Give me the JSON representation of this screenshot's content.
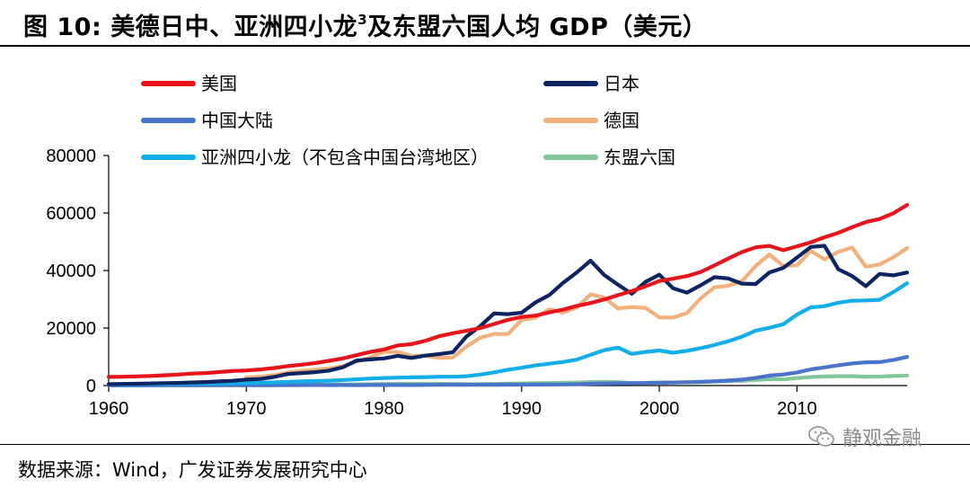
{
  "figure": {
    "label": "图 10:",
    "title_main": "美德日中、亚洲四小龙",
    "title_sup": "3",
    "title_rest": "及东盟六国人均 GDP（美元）"
  },
  "source": "数据来源：Wind，广发证券发展研究中心",
  "watermark": {
    "text": "静观金融",
    "icon": "wechat-icon"
  },
  "chart_data": {
    "type": "line",
    "xlim": [
      1960,
      2018
    ],
    "ylim": [
      0,
      80000
    ],
    "x_ticks": [
      1960,
      1970,
      1980,
      1990,
      2000,
      2010
    ],
    "y_ticks": [
      0,
      20000,
      40000,
      60000,
      80000
    ],
    "x_tick_labels": [
      "1960",
      "1970",
      "1980",
      "1990",
      "2000",
      "2010"
    ],
    "y_tick_labels": [
      "0",
      "20000",
      "40000",
      "60000",
      "80000"
    ],
    "legend_position": "top",
    "series": [
      {
        "name": "美国",
        "color": "#e8141b",
        "start": 1960,
        "values": [
          3000,
          3050,
          3200,
          3350,
          3550,
          3800,
          4150,
          4350,
          4700,
          5050,
          5250,
          5600,
          6100,
          6750,
          7250,
          7800,
          8600,
          9450,
          10550,
          11700,
          12550,
          13950,
          14400,
          15550,
          17150,
          18200,
          19050,
          20000,
          21400,
          22850,
          23850,
          24300,
          25450,
          26400,
          27700,
          28700,
          29950,
          31450,
          32850,
          34500,
          36350,
          37150,
          38050,
          39500,
          41750,
          44150,
          46400,
          48050,
          48550,
          47050,
          48400,
          49800,
          51550,
          53100,
          55050,
          56850,
          57900,
          59900,
          62800
        ]
      },
      {
        "name": "日本",
        "color": "#0c2461",
        "start": 1960,
        "values": [
          480,
          560,
          640,
          720,
          830,
          920,
          1060,
          1230,
          1450,
          1670,
          2050,
          2270,
          2970,
          3990,
          4350,
          4670,
          5200,
          6350,
          8700,
          9100,
          9450,
          10350,
          9600,
          10400,
          10950,
          11600,
          17100,
          20700,
          25100,
          24800,
          25350,
          28900,
          31450,
          35700,
          39300,
          43400,
          38450,
          35050,
          31900,
          36050,
          38550,
          33850,
          32300,
          34850,
          37700,
          37250,
          35450,
          35300,
          39350,
          40900,
          44500,
          48200,
          48600,
          40450,
          38100,
          34550,
          38800,
          38300,
          39300
        ]
      },
      {
        "name": "中国大陆",
        "color": "#4a74c9",
        "start": 1960,
        "values": [
          90,
          75,
          70,
          72,
          85,
          98,
          103,
          95,
          90,
          100,
          113,
          118,
          131,
          157,
          160,
          178,
          165,
          185,
          156,
          184,
          195,
          197,
          203,
          225,
          251,
          294,
          281,
          252,
          284,
          311,
          318,
          333,
          366,
          377,
          474,
          610,
          709,
          782,
          829,
          873,
          959,
          1053,
          1148,
          1288,
          1508,
          1753,
          2099,
          2693,
          3468,
          3832,
          4550,
          5618,
          6317,
          7051,
          7679,
          8067,
          8148,
          8879,
          9977
        ]
      },
      {
        "name": "德国",
        "color": "#f2b07c",
        "start": 1970,
        "values": [
          2800,
          3100,
          3600,
          4500,
          5100,
          5550,
          5900,
          6700,
          8300,
          9800,
          11700,
          11650,
          10300,
          10400,
          9600,
          9750,
          13600,
          16700,
          17950,
          17900,
          22800,
          23600,
          26500,
          25400,
          27100,
          31700,
          30600,
          26800,
          27300,
          27000,
          23700,
          23650,
          25200,
          30300,
          34200,
          34700,
          36300,
          41600,
          45600,
          41600,
          41800,
          46800,
          43900,
          46500,
          48000,
          41300,
          42100,
          44600,
          47800
        ]
      },
      {
        "name": "亚洲四小龙（不包含中国台湾地区）",
        "color": "#13aee9",
        "start": 1960,
        "values": [
          430,
          460,
          490,
          530,
          560,
          600,
          650,
          700,
          760,
          830,
          900,
          1000,
          1100,
          1250,
          1450,
          1550,
          1700,
          1900,
          2150,
          2450,
          2600,
          2750,
          2850,
          2950,
          3050,
          3050,
          3250,
          3800,
          4600,
          5500,
          6200,
          7000,
          7600,
          8200,
          9000,
          10700,
          12300,
          13200,
          11000,
          11700,
          12200,
          11400,
          12100,
          13000,
          14100,
          15400,
          17000,
          19100,
          20100,
          21300,
          24700,
          27200,
          27600,
          28800,
          29500,
          29600,
          29800,
          32500,
          35600
        ]
      },
      {
        "name": "东盟六国",
        "color": "#82c89b",
        "start": 1960,
        "values": [
          110,
          110,
          115,
          120,
          125,
          130,
          135,
          140,
          150,
          160,
          170,
          180,
          190,
          215,
          260,
          290,
          320,
          360,
          410,
          480,
          560,
          600,
          610,
          610,
          610,
          570,
          520,
          540,
          590,
          660,
          740,
          810,
          890,
          970,
          1060,
          1230,
          1310,
          1180,
          860,
          950,
          1050,
          1030,
          1110,
          1220,
          1350,
          1470,
          1680,
          1950,
          2230,
          2150,
          2600,
          2980,
          3150,
          3250,
          3250,
          3080,
          3120,
          3320,
          3500
        ]
      }
    ]
  }
}
